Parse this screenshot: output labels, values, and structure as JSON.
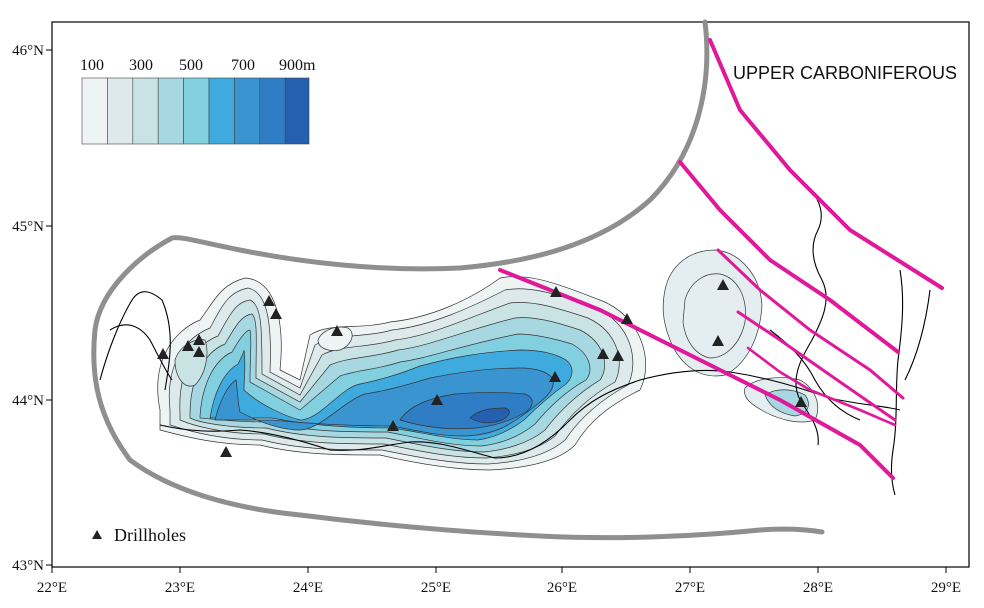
{
  "map": {
    "region_label": "UPPER CARBONIFEROUS",
    "legend": {
      "labels": [
        "100",
        "300",
        "500",
        "700",
        "900m"
      ],
      "colors": [
        "#eef3f3",
        "#dde9ea",
        "#c9e2e4",
        "#a7d8e1",
        "#82cfe0",
        "#3eaade",
        "#3a94d0",
        "#2f7dc4",
        "#2560b0"
      ]
    },
    "drillholes_label": "Drillholes",
    "x_ticks": [
      "22°E",
      "23°E",
      "24°E",
      "25°E",
      "26°E",
      "27°E",
      "28°E",
      "29°E"
    ],
    "y_ticks": [
      "46°N",
      "45°N",
      "44°N",
      "43°N"
    ],
    "colors": {
      "boundary": "#8f8f8f",
      "fault": "#e0199a",
      "contour_line": "#333333",
      "frame": "#000000"
    }
  }
}
